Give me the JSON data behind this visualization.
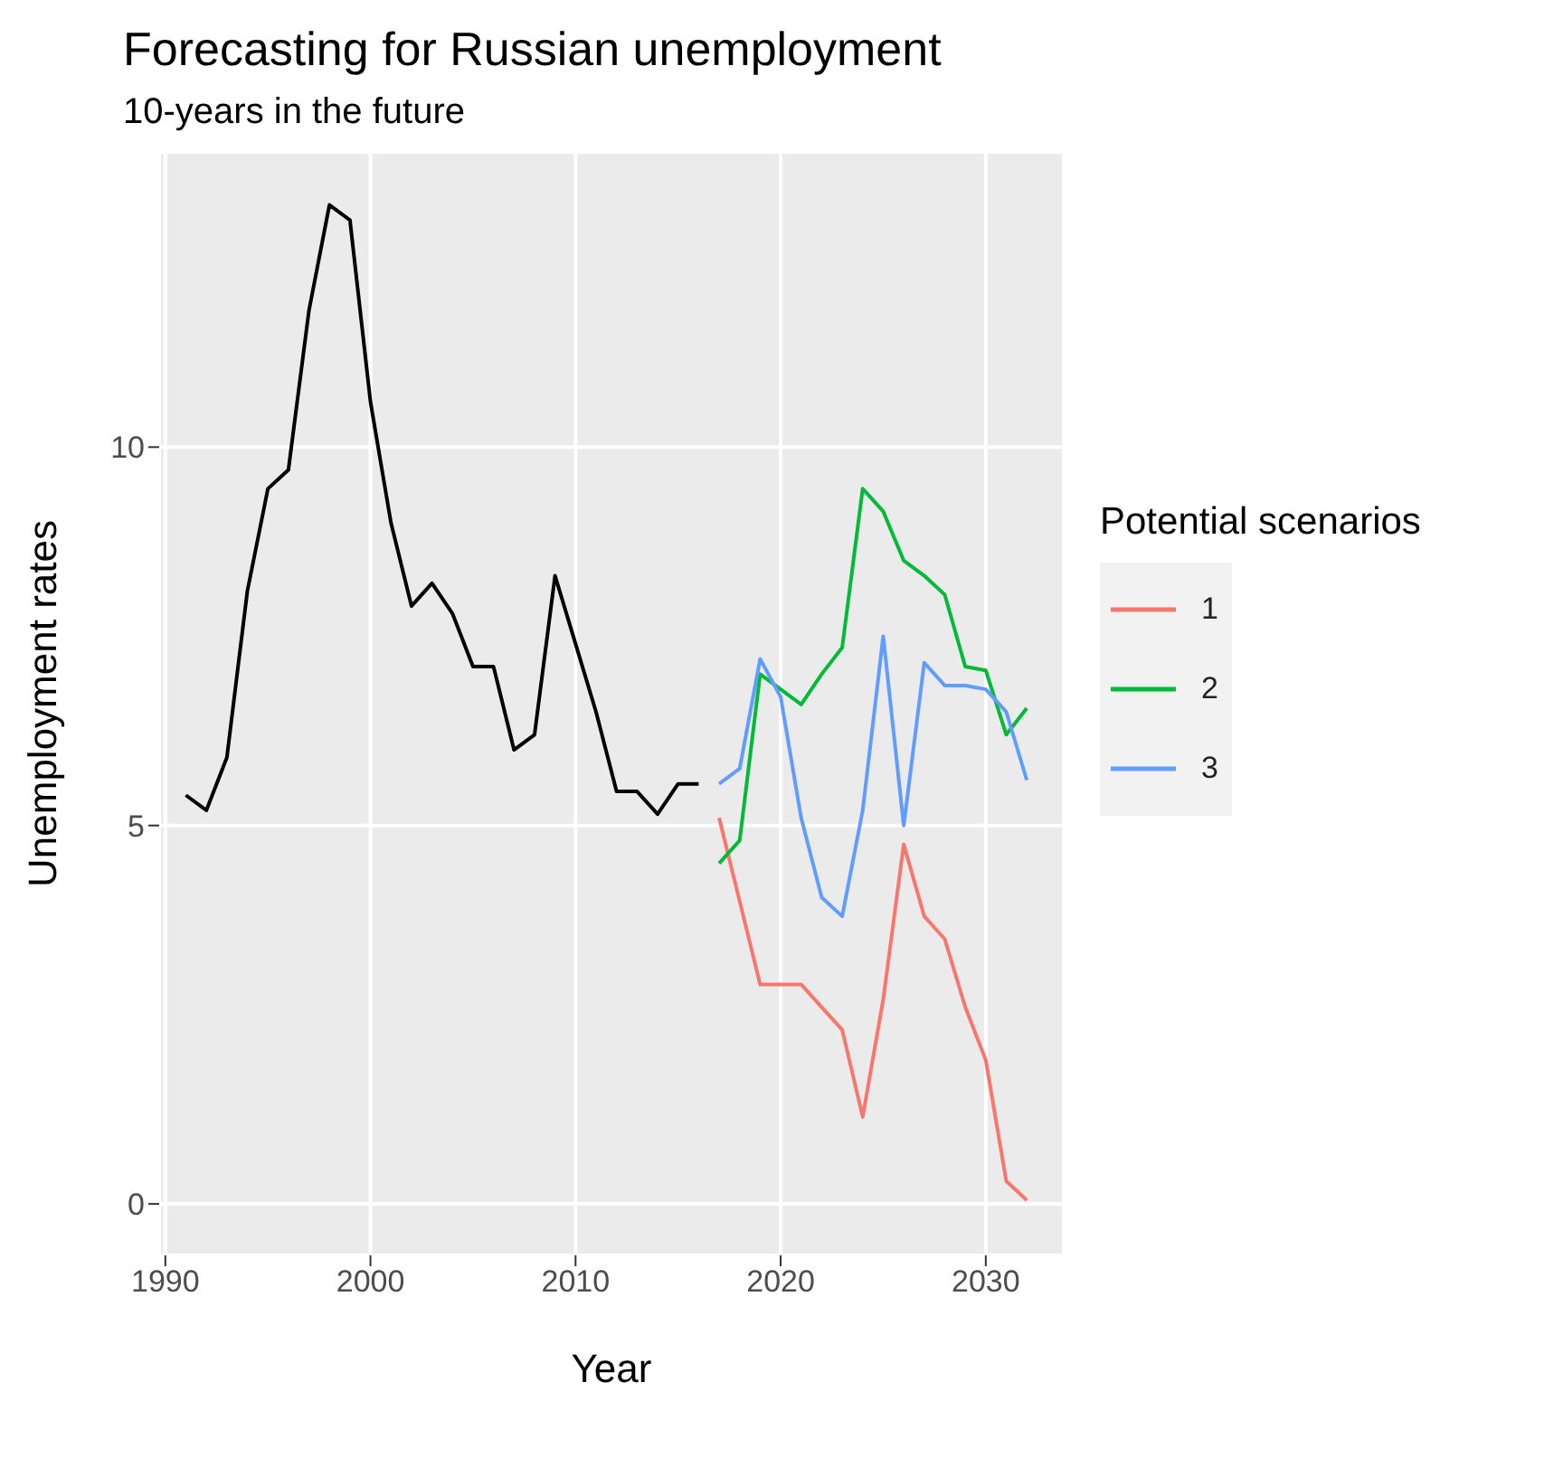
{
  "chart_data": {
    "type": "line",
    "title": "Forecasting for Russian unemployment",
    "subtitle": "10-years in the future",
    "xlabel": "Year",
    "ylabel": "Unemployment rates",
    "legend_title": "Potential scenarios",
    "series": [
      {
        "color": "#000000",
        "x": [
          1991,
          1992,
          1993,
          1994,
          1995,
          1996,
          1997,
          1998,
          1999,
          2000,
          2001,
          2002,
          2003,
          2004,
          2005,
          2006,
          2007,
          2008,
          2009,
          2010,
          2011,
          2012,
          2013,
          2014,
          2015,
          2016
        ],
        "values": [
          5.4,
          5.2,
          5.9,
          8.1,
          9.45,
          9.7,
          11.8,
          13.2,
          13.0,
          10.6,
          9.0,
          7.9,
          8.2,
          7.8,
          7.1,
          7.1,
          6.0,
          6.2,
          8.3,
          7.4,
          6.5,
          5.45,
          5.45,
          5.15,
          5.55,
          5.55
        ]
      },
      {
        "name": "1",
        "color": "#f8766d",
        "x": [
          2017,
          2018,
          2019,
          2020,
          2021,
          2022,
          2023,
          2024,
          2025,
          2026,
          2027,
          2028,
          2029,
          2030,
          2031,
          2032
        ],
        "values": [
          5.1,
          4.0,
          2.9,
          2.9,
          2.9,
          2.6,
          2.3,
          1.15,
          2.7,
          4.75,
          3.8,
          3.5,
          2.6,
          1.9,
          0.3,
          0.05
        ]
      },
      {
        "name": "2",
        "color": "#00ba38",
        "x": [
          2017,
          2018,
          2019,
          2020,
          2021,
          2022,
          2023,
          2024,
          2025,
          2026,
          2027,
          2028,
          2029,
          2030,
          2031,
          2032
        ],
        "values": [
          4.5,
          4.8,
          7.0,
          6.8,
          6.6,
          7.0,
          7.35,
          9.45,
          9.15,
          8.5,
          8.3,
          8.05,
          7.1,
          7.05,
          6.2,
          6.55
        ]
      },
      {
        "name": "3",
        "color": "#619cff",
        "x": [
          2017,
          2018,
          2019,
          2020,
          2021,
          2022,
          2023,
          2024,
          2025,
          2026,
          2027,
          2028,
          2029,
          2030,
          2031,
          2032
        ],
        "values": [
          5.55,
          5.75,
          7.2,
          6.7,
          5.1,
          4.05,
          3.8,
          5.2,
          7.5,
          5.0,
          7.15,
          6.85,
          6.85,
          6.8,
          6.5,
          5.6
        ]
      }
    ],
    "xlim": [
      1989.7,
      2033.8
    ],
    "xticks": [
      1990,
      2000,
      2010,
      2020,
      2030
    ],
    "ylim": [
      -0.68,
      13.9
    ],
    "yticks": [
      0,
      5,
      10
    ],
    "grid": true,
    "legend": "right",
    "marker": "none",
    "line_style": "solid"
  }
}
